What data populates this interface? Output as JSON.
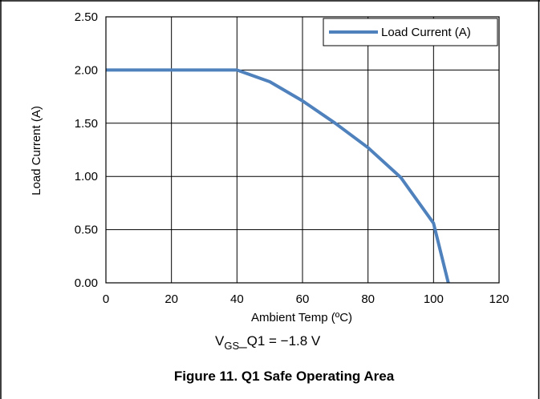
{
  "chart_data": {
    "type": "line",
    "xlabel": "Ambient Temp (ºC)",
    "ylabel": "Load Current (A)",
    "xlim": [
      0,
      120
    ],
    "ylim": [
      0,
      2.5
    ],
    "x_ticks": [
      "0",
      "20",
      "40",
      "60",
      "80",
      "100",
      "120"
    ],
    "y_ticks": [
      "0.00",
      "0.50",
      "1.00",
      "1.50",
      "2.00",
      "2.50"
    ],
    "grid": true,
    "legend_position": "top-right",
    "series": [
      {
        "name": "Load Current (A)",
        "color": "#4f81bd",
        "points": [
          [
            0,
            2.0
          ],
          [
            40,
            2.0
          ],
          [
            50,
            1.89
          ],
          [
            60,
            1.71
          ],
          [
            70,
            1.5
          ],
          [
            80,
            1.27
          ],
          [
            90,
            0.99
          ],
          [
            100,
            0.56
          ],
          [
            104.5,
            0.0
          ]
        ]
      }
    ]
  },
  "annotation": {
    "main": "V",
    "sub": "GS",
    "rest": "_Q1 = −1.8 V"
  },
  "caption": "Figure 11. Q1 Safe Operating Area"
}
